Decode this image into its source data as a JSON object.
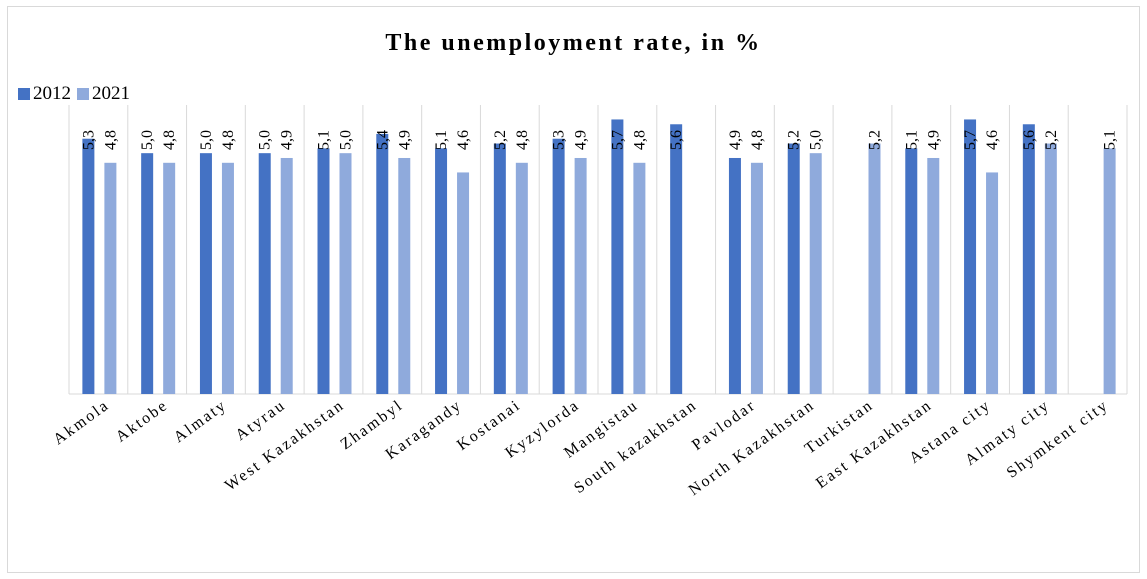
{
  "chart_data": {
    "type": "bar",
    "title": "The unemployment rate, in %",
    "categories": [
      "Akmola",
      "Aktobe",
      "Almaty",
      "Atyrau",
      "West Kazakhstan",
      "Zhambyl",
      "Karagandy",
      "Kostanai",
      "Kyzylorda",
      "Mangistau",
      "South kazakhstan",
      "Pavlodar",
      "North Kazakhstan",
      "Turkistan",
      "East Kazakhstan",
      "Astana city",
      "Almaty city",
      "Shymkent city"
    ],
    "series": [
      {
        "name": "2012",
        "color": "#4472c4",
        "values": [
          5.3,
          5.0,
          5.0,
          5.0,
          5.1,
          5.4,
          5.1,
          5.2,
          5.3,
          5.7,
          5.6,
          4.9,
          5.2,
          null,
          5.1,
          5.7,
          5.6,
          null
        ],
        "labels": [
          "5,3",
          "5,0",
          "5,0",
          "5,0",
          "5,1",
          "5,4",
          "5,1",
          "5,2",
          "5,3",
          "5,7",
          "5,6",
          "4,9",
          "5,2",
          "",
          "5,1",
          "5,7",
          "5,6",
          ""
        ]
      },
      {
        "name": "2021",
        "color": "#8faadc",
        "values": [
          4.8,
          4.8,
          4.8,
          4.9,
          5.0,
          4.9,
          4.6,
          4.8,
          4.9,
          4.8,
          null,
          4.8,
          5.0,
          5.2,
          4.9,
          4.6,
          5.2,
          5.1
        ],
        "labels": [
          "4,8",
          "4,8",
          "4,8",
          "4,9",
          "5,0",
          "4,9",
          "4,6",
          "4,8",
          "4,9",
          "4,8",
          "",
          "4,8",
          "5,0",
          "5,2",
          "4,9",
          "4,6",
          "5,2",
          "5,1"
        ]
      }
    ],
    "xlabel": "",
    "ylabel": "",
    "ylim": [
      0,
      6
    ],
    "grid": false,
    "legend": "top-left"
  }
}
